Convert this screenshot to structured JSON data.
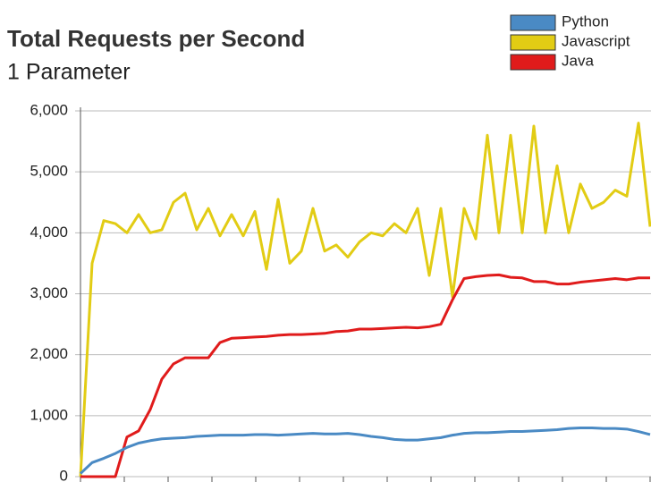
{
  "chart_data": {
    "type": "line",
    "title": "Total Requests per Second",
    "subtitle": "1 Parameter",
    "ylim": [
      0,
      6000
    ],
    "yticks": [
      {
        "value": 0,
        "label": "0"
      },
      {
        "value": 1000,
        "label": "1,000"
      },
      {
        "value": 2000,
        "label": "2,000"
      },
      {
        "value": 3000,
        "label": "3,000"
      },
      {
        "value": 4000,
        "label": "4,000"
      },
      {
        "value": 5000,
        "label": "5,000"
      },
      {
        "value": 6000,
        "label": "6,000"
      }
    ],
    "grid": true,
    "legend": "top-right",
    "series": [
      {
        "name": "Python",
        "color": "#4a8ac4",
        "values": [
          50,
          230,
          300,
          380,
          480,
          550,
          590,
          620,
          630,
          640,
          660,
          670,
          680,
          680,
          680,
          690,
          690,
          680,
          690,
          700,
          710,
          700,
          700,
          710,
          690,
          660,
          640,
          610,
          600,
          600,
          620,
          640,
          680,
          710,
          720,
          720,
          730,
          740,
          740,
          750,
          760,
          770,
          790,
          800,
          800,
          790,
          790,
          780,
          740,
          690
        ]
      },
      {
        "name": "Javascript",
        "color": "#e2cc14",
        "values": [
          0,
          3500,
          4200,
          4150,
          4000,
          4300,
          4000,
          4050,
          4500,
          4650,
          4050,
          4400,
          3950,
          4300,
          3950,
          4350,
          3400,
          4550,
          3500,
          3700,
          4400,
          3700,
          3800,
          3600,
          3850,
          4000,
          3950,
          4150,
          4000,
          4400,
          3300,
          4400,
          2950,
          4400,
          3900,
          5600,
          4000,
          5600,
          4000,
          5750,
          4000,
          5100,
          4000,
          4800,
          4400,
          4500,
          4700,
          4600,
          5800,
          4100
        ]
      },
      {
        "name": "Java",
        "color": "#e01b1b",
        "values": [
          0,
          0,
          0,
          0,
          650,
          750,
          1100,
          1600,
          1850,
          1950,
          1950,
          1950,
          2200,
          2270,
          2280,
          2290,
          2300,
          2320,
          2330,
          2330,
          2340,
          2350,
          2380,
          2390,
          2420,
          2420,
          2430,
          2440,
          2450,
          2440,
          2460,
          2500,
          2900,
          3250,
          3280,
          3300,
          3310,
          3270,
          3260,
          3200,
          3200,
          3160,
          3160,
          3190,
          3210,
          3230,
          3250,
          3230,
          3260,
          3260
        ]
      }
    ]
  }
}
